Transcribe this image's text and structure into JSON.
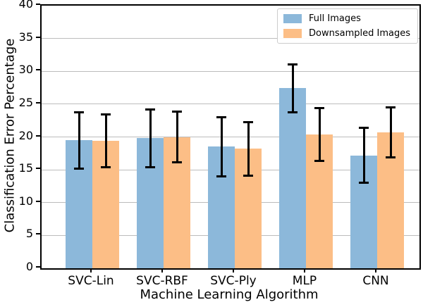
{
  "chart_data": {
    "type": "bar",
    "title": "",
    "xlabel": "Machine Learning Algorithm",
    "ylabel": "Classification Error Percentage",
    "categories": [
      "SVC-Lin",
      "SVC-RBF",
      "SVC-Ply",
      "MLP",
      "CNN"
    ],
    "series": [
      {
        "name": "Full Images",
        "color": "#8cb8da",
        "values": [
          19.5,
          19.8,
          18.5,
          27.4,
          17.2
        ],
        "errors": [
          4.3,
          4.4,
          4.5,
          3.6,
          4.2
        ]
      },
      {
        "name": "Downsampled Images",
        "color": "#fcbe86",
        "values": [
          19.4,
          20.0,
          18.2,
          20.4,
          20.7
        ],
        "errors": [
          4.0,
          3.9,
          4.1,
          4.0,
          3.8
        ]
      }
    ],
    "ylim": [
      0,
      40
    ],
    "yticks": [
      0,
      5,
      10,
      15,
      20,
      25,
      30,
      35,
      40
    ],
    "grid": "horizontal",
    "gridline_color": "#bcbcbc",
    "errorbar_color": "#000000",
    "legend_position": "top-right"
  }
}
